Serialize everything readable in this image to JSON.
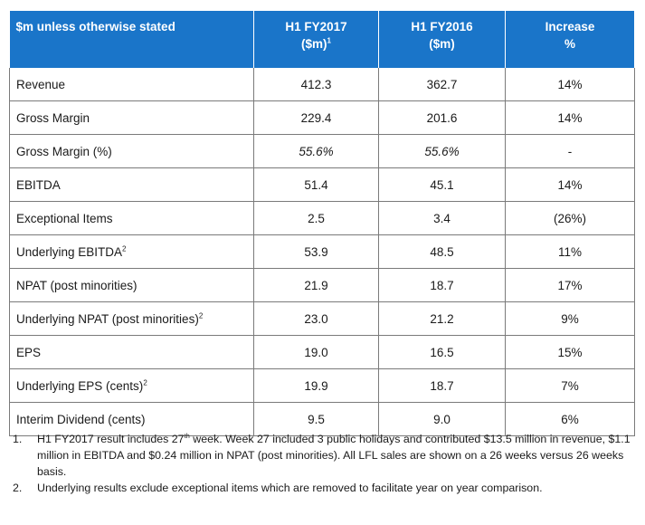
{
  "table": {
    "header": {
      "col0": "$m unless otherwise stated",
      "col1_line1": "H1 FY2017",
      "col1_line2": "($m)",
      "col1_sup": "1",
      "col2_line1": "H1 FY2016",
      "col2_line2": "($m)",
      "col3_line1": "Increase",
      "col3_line2": "%"
    },
    "rows": [
      {
        "label": "Revenue",
        "sup": "",
        "fy2017": "412.3",
        "fy2016": "362.7",
        "increase": "14%",
        "italic": false
      },
      {
        "label": "Gross Margin",
        "sup": "",
        "fy2017": "229.4",
        "fy2016": "201.6",
        "increase": "14%",
        "italic": false
      },
      {
        "label": "Gross Margin (%)",
        "sup": "",
        "fy2017": "55.6%",
        "fy2016": "55.6%",
        "increase": "-",
        "italic": true
      },
      {
        "label": "EBITDA",
        "sup": "",
        "fy2017": "51.4",
        "fy2016": "45.1",
        "increase": "14%",
        "italic": false
      },
      {
        "label": "Exceptional Items",
        "sup": "",
        "fy2017": "2.5",
        "fy2016": "3.4",
        "increase": "(26%)",
        "italic": false
      },
      {
        "label": "Underlying EBITDA",
        "sup": "2",
        "fy2017": "53.9",
        "fy2016": "48.5",
        "increase": "11%",
        "italic": false
      },
      {
        "label": "NPAT (post minorities)",
        "sup": "",
        "fy2017": "21.9",
        "fy2016": "18.7",
        "increase": "17%",
        "italic": false
      },
      {
        "label": "Underlying NPAT (post minorities)",
        "sup": "2",
        "fy2017": "23.0",
        "fy2016": "21.2",
        "increase": "9%",
        "italic": false
      },
      {
        "label": "EPS",
        "sup": "",
        "fy2017": "19.0",
        "fy2016": "16.5",
        "increase": "15%",
        "italic": false
      },
      {
        "label": "Underlying EPS (cents)",
        "sup": "2",
        "fy2017": "19.9",
        "fy2016": "18.7",
        "increase": "7%",
        "italic": false
      },
      {
        "label": "Interim Dividend (cents)",
        "sup": "",
        "fy2017": "9.5",
        "fy2016": "9.0",
        "increase": "6%",
        "italic": false
      }
    ]
  },
  "notes": [
    {
      "num": "1.",
      "text_a": "H1 FY2017 result includes 27",
      "sup": "th",
      "text_b": " week. Week 27 included 3 public holidays and contributed $13.5 million in revenue, $1.1 million in EBITDA and $0.24 million in NPAT (post minorities). All LFL sales are shown on a 26 weeks versus 26 weeks basis."
    },
    {
      "num": "2.",
      "text_a": "Underlying results exclude exceptional items which are removed to facilitate year on year comparison.",
      "sup": "",
      "text_b": ""
    }
  ],
  "colors": {
    "header_bg": "#1a75c9",
    "header_text": "#ffffff",
    "border": "#7a7a7a"
  }
}
